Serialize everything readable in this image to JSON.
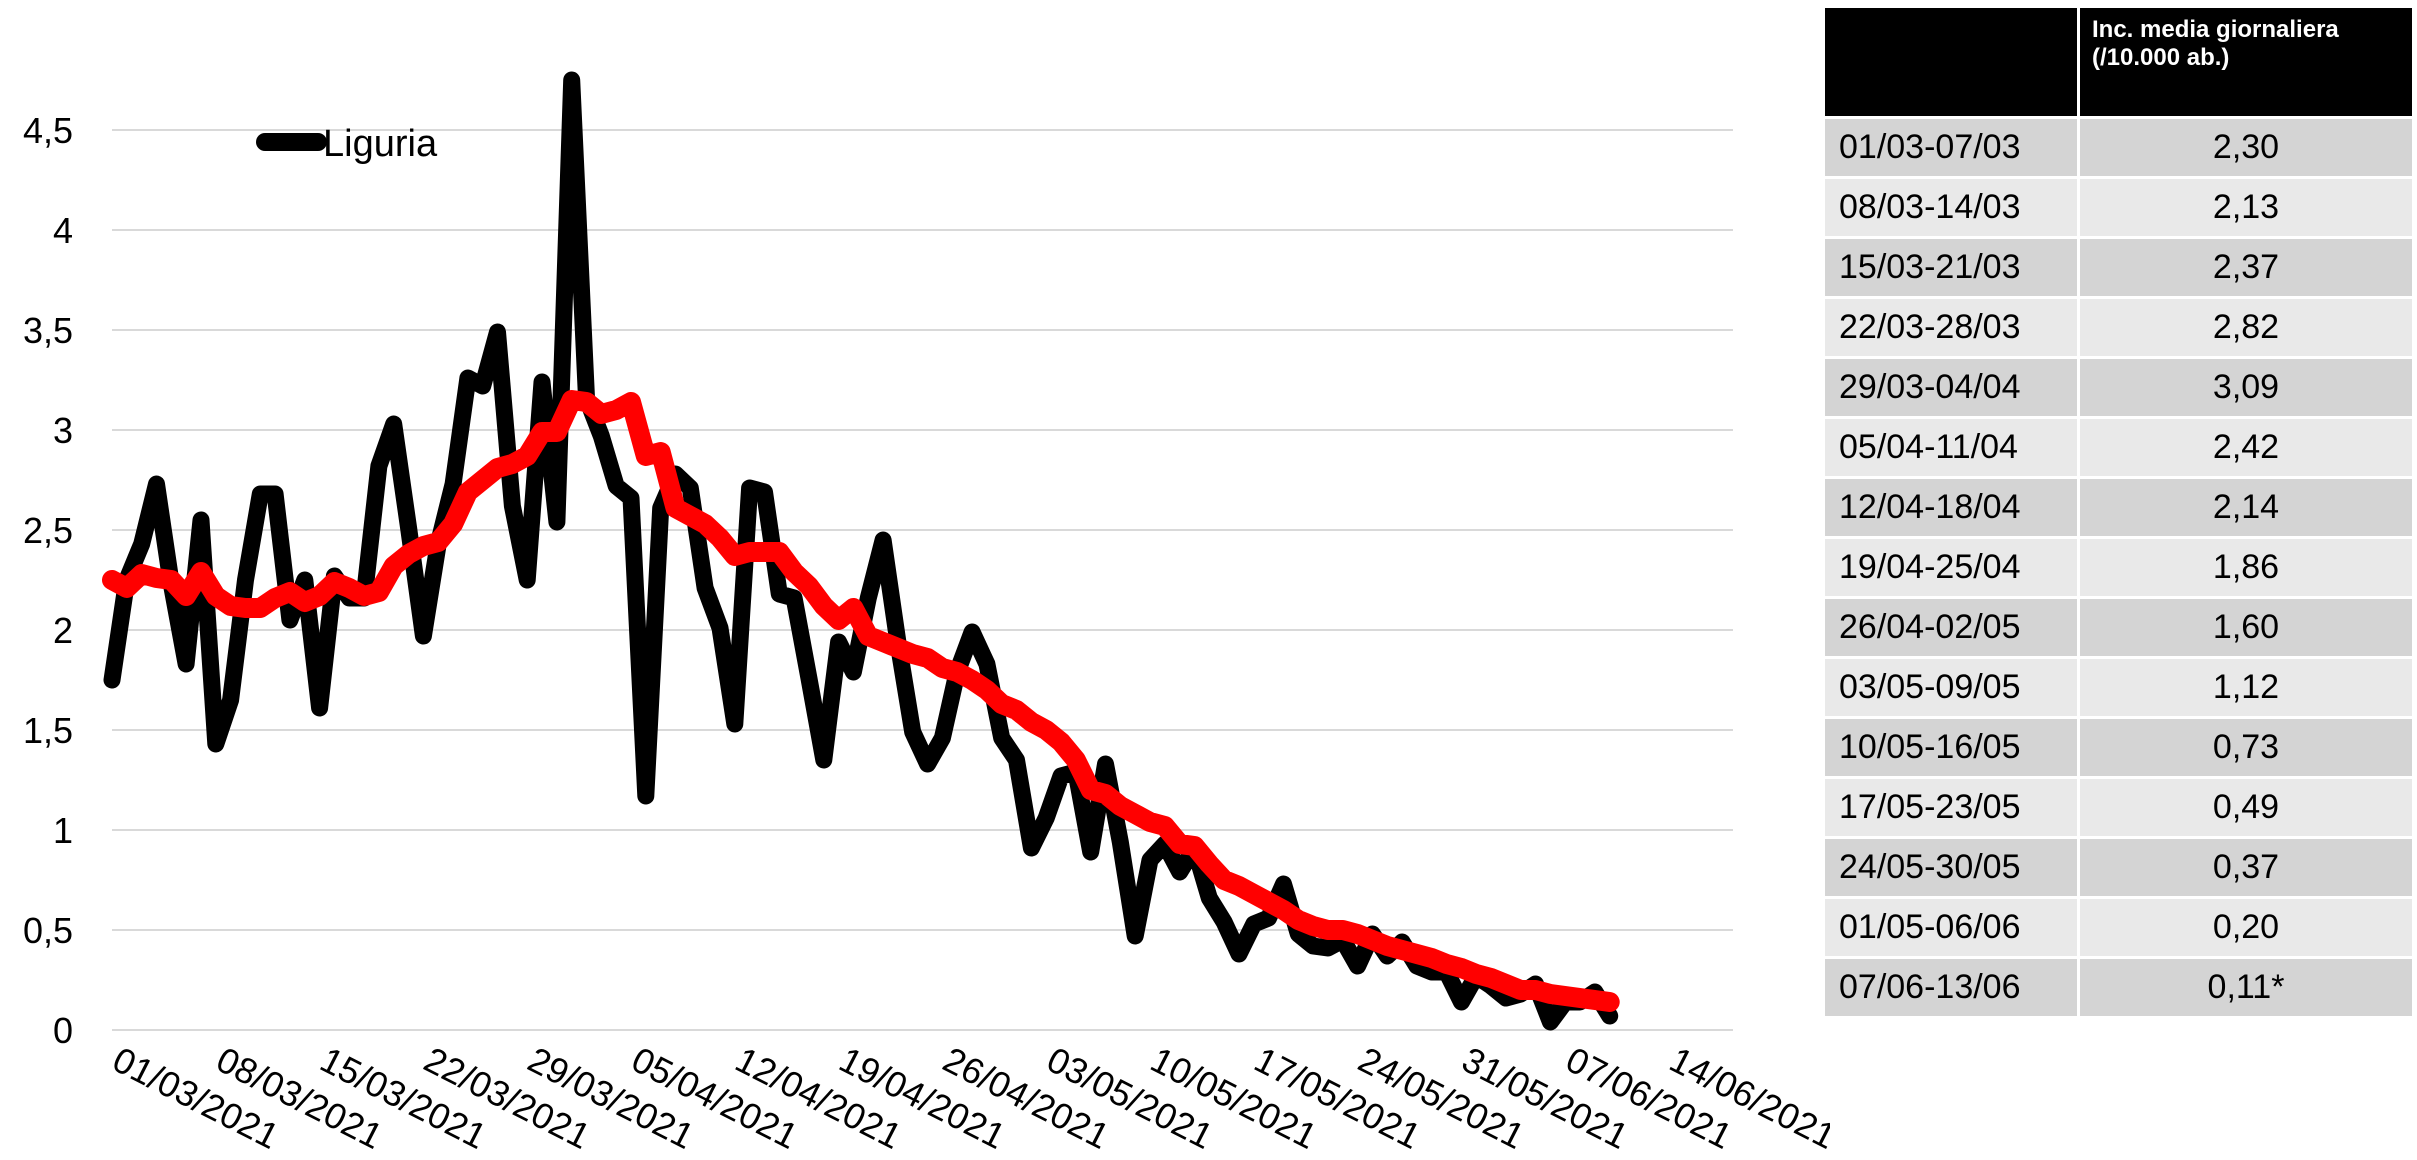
{
  "chart_data": {
    "type": "line",
    "title": "",
    "xlabel": "",
    "ylabel": "",
    "ylim": [
      0,
      4.7
    ],
    "yticks": [
      "0",
      "0,5",
      "1",
      "1,5",
      "2",
      "2,5",
      "3",
      "3,5",
      "4",
      "4,5"
    ],
    "xticks": [
      "01/03/2021",
      "08/03/2021",
      "15/03/2021",
      "22/03/2021",
      "29/03/2021",
      "05/04/2021",
      "12/04/2021",
      "19/04/2021",
      "26/04/2021",
      "03/05/2021",
      "10/05/2021",
      "17/05/2021",
      "24/05/2021",
      "31/05/2021",
      "07/06/2021",
      "14/06/2021"
    ],
    "grid": true,
    "legend": "top-left",
    "x_start": "01/03/2021",
    "series": [
      {
        "name": "Liguria",
        "color": "#000000",
        "values": [
          1.75,
          2.25,
          2.43,
          2.73,
          2.23,
          1.83,
          2.55,
          1.43,
          1.65,
          2.25,
          2.68,
          2.68,
          2.05,
          2.25,
          1.61,
          2.27,
          2.16,
          2.16,
          2.82,
          3.03,
          2.51,
          1.97,
          2.43,
          2.73,
          3.26,
          3.22,
          3.49,
          2.62,
          2.25,
          3.24,
          2.54,
          4.75,
          3.16,
          2.97,
          2.72,
          2.66,
          1.17,
          2.61,
          2.78,
          2.71,
          2.21,
          2.01,
          1.53,
          2.71,
          2.69,
          2.18,
          2.16,
          1.76,
          1.35,
          1.94,
          1.79,
          2.16,
          2.45,
          1.94,
          1.49,
          1.33,
          1.46,
          1.79,
          1.99,
          1.83,
          1.46,
          1.35,
          0.91,
          1.06,
          1.27,
          1.29,
          0.89,
          1.33,
          0.94,
          0.47,
          0.85,
          0.93,
          0.79,
          0.91,
          0.66,
          0.54,
          0.38,
          0.53,
          0.56,
          0.73,
          0.48,
          0.42,
          0.41,
          0.45,
          0.32,
          0.48,
          0.37,
          0.44,
          0.32,
          0.29,
          0.29,
          0.14,
          0.27,
          0.22,
          0.16,
          0.18,
          0.23,
          0.04,
          0.14,
          0.14,
          0.19,
          0.07
        ]
      },
      {
        "name": "",
        "color": "#ff0000",
        "values": [
          2.25,
          2.21,
          2.28,
          2.26,
          2.25,
          2.17,
          2.29,
          2.17,
          2.12,
          2.11,
          2.11,
          2.16,
          2.19,
          2.14,
          2.17,
          2.24,
          2.21,
          2.17,
          2.19,
          2.32,
          2.38,
          2.42,
          2.44,
          2.53,
          2.69,
          2.75,
          2.81,
          2.83,
          2.87,
          2.99,
          2.99,
          3.15,
          3.14,
          3.08,
          3.1,
          3.14,
          2.87,
          2.89,
          2.61,
          2.57,
          2.53,
          2.46,
          2.37,
          2.39,
          2.39,
          2.39,
          2.29,
          2.22,
          2.12,
          2.05,
          2.11,
          1.97,
          1.94,
          1.91,
          1.88,
          1.86,
          1.81,
          1.79,
          1.75,
          1.7,
          1.63,
          1.6,
          1.54,
          1.5,
          1.44,
          1.35,
          1.2,
          1.18,
          1.12,
          1.08,
          1.04,
          1.02,
          0.93,
          0.92,
          0.83,
          0.75,
          0.72,
          0.68,
          0.64,
          0.6,
          0.55,
          0.52,
          0.5,
          0.5,
          0.48,
          0.45,
          0.42,
          0.4,
          0.38,
          0.36,
          0.33,
          0.31,
          0.28,
          0.26,
          0.23,
          0.2,
          0.2,
          0.18,
          0.17,
          0.16,
          0.15,
          0.14
        ]
      }
    ]
  },
  "table": {
    "header": [
      "",
      "Inc. media giornaliera (/10.000 ab.)"
    ],
    "rows": [
      {
        "week": "01/03-07/03",
        "value": "2,30"
      },
      {
        "week": "08/03-14/03",
        "value": "2,13"
      },
      {
        "week": "15/03-21/03",
        "value": "2,37"
      },
      {
        "week": "22/03-28/03",
        "value": "2,82"
      },
      {
        "week": "29/03-04/04",
        "value": "3,09"
      },
      {
        "week": "05/04-11/04",
        "value": "2,42"
      },
      {
        "week": "12/04-18/04",
        "value": "2,14"
      },
      {
        "week": "19/04-25/04",
        "value": "1,86"
      },
      {
        "week": "26/04-02/05",
        "value": "1,60"
      },
      {
        "week": "03/05-09/05",
        "value": "1,12"
      },
      {
        "week": "10/05-16/05",
        "value": "0,73"
      },
      {
        "week": "17/05-23/05",
        "value": "0,49"
      },
      {
        "week": "24/05-30/05",
        "value": "0,37"
      },
      {
        "week": "01/05-06/06",
        "value": "0,20"
      },
      {
        "week": "07/06-13/06",
        "value": "0,11*"
      }
    ]
  }
}
